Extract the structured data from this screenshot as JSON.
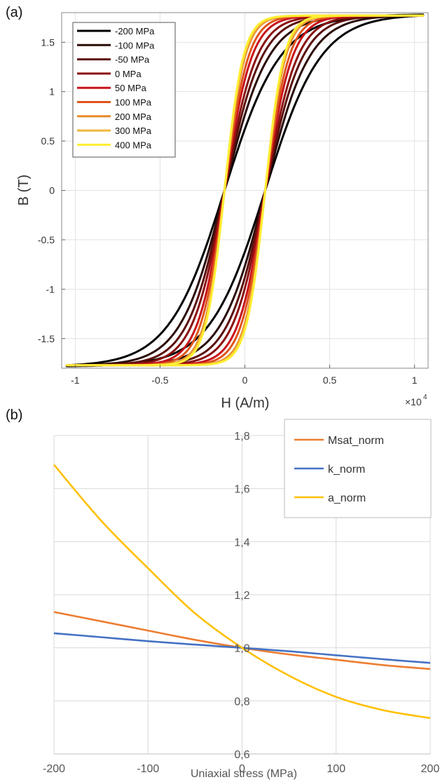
{
  "chart_data": [
    {
      "panel_label": "(a)",
      "type": "line",
      "xlabel": "H (A/m)",
      "ylabel": "B (T)",
      "x_exponent_label": "×10",
      "x_exponent_power": "4",
      "x_scale": 10000,
      "xlim": [
        -1.08,
        1.08
      ],
      "ylim": [
        -1.8,
        1.8
      ],
      "xticks": [
        -1,
        -0.5,
        0,
        0.5,
        1
      ],
      "xtick_labels": [
        "-1",
        "-0.5",
        "0",
        "0.5",
        "1"
      ],
      "yticks": [
        -1.5,
        -1,
        -0.5,
        0,
        0.5,
        1,
        1.5
      ],
      "ytick_labels": [
        "-1.5",
        "-1",
        "-0.5",
        "0",
        "0.5",
        "1",
        "1.5"
      ],
      "grid": true,
      "legend_position": "top-left",
      "loop": {
        "h_max": 1.05,
        "b_max_end": 1.77,
        "b_min_end": -1.76
      },
      "series": [
        {
          "name": "-200 MPa",
          "color": "#000000",
          "coercivity": 0.12,
          "remanence": 0.4,
          "curve_width": 0.33
        },
        {
          "name": "-100 MPa",
          "color": "#2a0a08",
          "coercivity": 0.12,
          "remanence": 0.4,
          "curve_width": 0.26
        },
        {
          "name": "-50 MPa",
          "color": "#5c0f0c",
          "coercivity": 0.12,
          "remanence": 0.4,
          "curve_width": 0.22
        },
        {
          "name": "0 MPa",
          "color": "#8b0f0f",
          "coercivity": 0.12,
          "remanence": 0.4,
          "curve_width": 0.19
        },
        {
          "name": "50 MPa",
          "color": "#c8131a",
          "coercivity": 0.12,
          "remanence": 0.4,
          "curve_width": 0.16
        },
        {
          "name": "100 MPa",
          "color": "#e0541b",
          "coercivity": 0.12,
          "remanence": 0.4,
          "curve_width": 0.14
        },
        {
          "name": "200 MPa",
          "color": "#e88a2b",
          "coercivity": 0.12,
          "remanence": 0.4,
          "curve_width": 0.12
        },
        {
          "name": "300 MPa",
          "color": "#f0b63a",
          "coercivity": 0.12,
          "remanence": 0.4,
          "curve_width": 0.115
        },
        {
          "name": "400 MPa",
          "color": "#ffee33",
          "coercivity": 0.12,
          "remanence": 0.4,
          "curve_width": 0.11
        }
      ]
    },
    {
      "panel_label": "(b)",
      "type": "line",
      "xlabel": "Uniaxial stress (MPa)",
      "ylabel": "",
      "xlim": [
        -200,
        200
      ],
      "ylim": [
        0.6,
        1.8
      ],
      "xticks": [
        -200,
        -100,
        0,
        100,
        200
      ],
      "xtick_labels": [
        "-200",
        "-100",
        "0",
        "100",
        "200"
      ],
      "yticks": [
        0.6,
        0.8,
        1.0,
        1.2,
        1.4,
        1.6,
        1.8
      ],
      "ytick_labels": [
        "0,6",
        "0,8",
        "1,0",
        "1,2",
        "1,4",
        "1,6",
        "1,8"
      ],
      "grid": true,
      "legend_position": "top-right",
      "x": [
        -200,
        -150,
        -100,
        -50,
        0,
        50,
        100,
        150,
        200
      ],
      "series": [
        {
          "name": "Msat_norm",
          "color": "#ed7d31",
          "values": [
            1.135,
            1.1,
            1.065,
            1.03,
            1.0,
            0.975,
            0.955,
            0.935,
            0.92
          ]
        },
        {
          "name": "k_norm",
          "color": "#4472c4",
          "values": [
            1.055,
            1.04,
            1.025,
            1.012,
            1.0,
            0.987,
            0.972,
            0.957,
            0.943
          ]
        },
        {
          "name": "a_norm",
          "color": "#ffc000",
          "values": [
            1.69,
            1.48,
            1.3,
            1.13,
            1.0,
            0.895,
            0.815,
            0.765,
            0.735
          ]
        }
      ]
    }
  ]
}
